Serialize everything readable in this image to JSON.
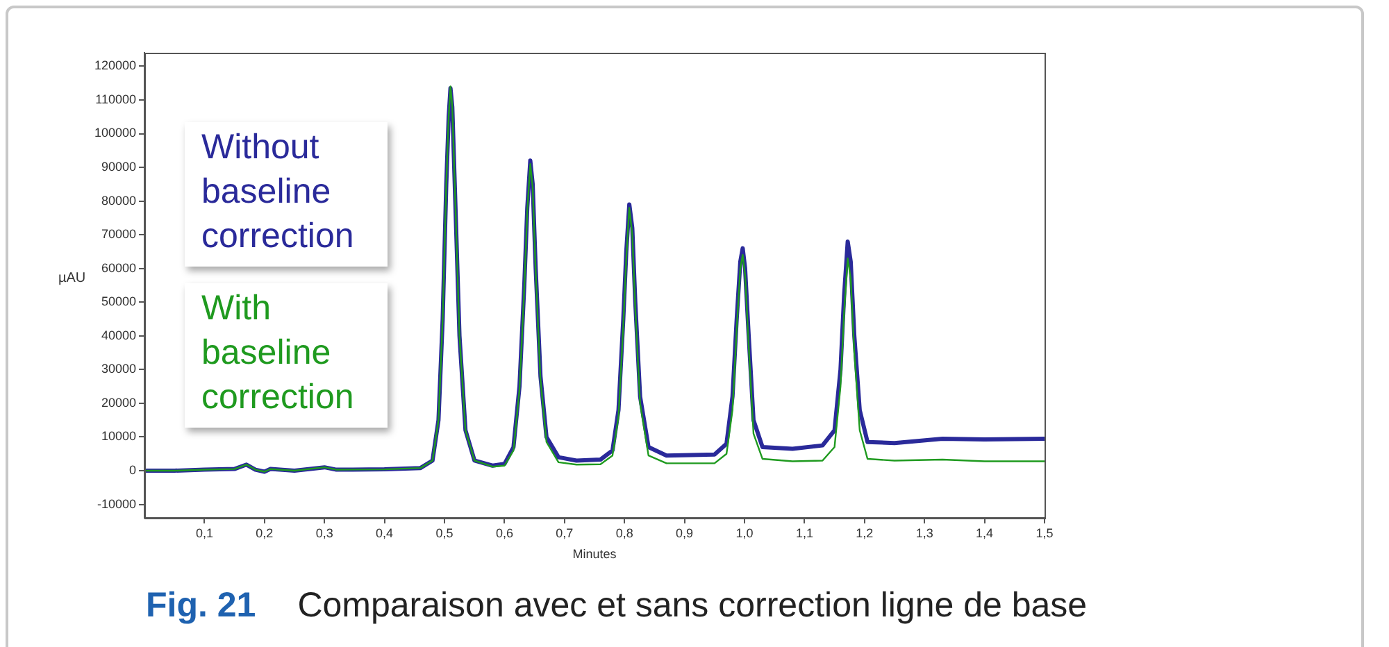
{
  "chart_data": {
    "type": "line",
    "xlabel": "Minutes",
    "ylabel": "µAU",
    "legend": "top left",
    "grid": false,
    "marker": "none",
    "line_style": "solid",
    "annotations": [
      "Fig. 21",
      "Comparaison avec et sans correction ligne de base"
    ],
    "xlim": [
      0,
      1.5
    ],
    "ylim": [
      -14000,
      124000
    ],
    "xticks": [
      {
        "value": 0.1,
        "label": "0,1"
      },
      {
        "value": 0.2,
        "label": "0,2"
      },
      {
        "value": 0.3,
        "label": "0,3"
      },
      {
        "value": 0.4,
        "label": "0,4"
      },
      {
        "value": 0.5,
        "label": "0,5"
      },
      {
        "value": 0.6,
        "label": "0,6"
      },
      {
        "value": 0.7,
        "label": "0,7"
      },
      {
        "value": 0.8,
        "label": "0,8"
      },
      {
        "value": 0.9,
        "label": "0,9"
      },
      {
        "value": 1.0,
        "label": "1,0"
      },
      {
        "value": 1.1,
        "label": "1,1"
      },
      {
        "value": 1.2,
        "label": "1,2"
      },
      {
        "value": 1.3,
        "label": "1,3"
      },
      {
        "value": 1.4,
        "label": "1,4"
      },
      {
        "value": 1.5,
        "label": "1,5"
      }
    ],
    "yticks": [
      -10000,
      0,
      10000,
      20000,
      30000,
      40000,
      50000,
      60000,
      70000,
      80000,
      90000,
      100000,
      110000,
      120000
    ],
    "x": [
      0,
      0.05,
      0.1,
      0.15,
      0.17,
      0.185,
      0.2,
      0.21,
      0.25,
      0.3,
      0.32,
      0.4,
      0.46,
      0.48,
      0.49,
      0.497,
      0.503,
      0.507,
      0.51,
      0.513,
      0.518,
      0.525,
      0.535,
      0.55,
      0.58,
      0.6,
      0.615,
      0.625,
      0.633,
      0.638,
      0.643,
      0.647,
      0.652,
      0.66,
      0.67,
      0.69,
      0.72,
      0.76,
      0.78,
      0.79,
      0.798,
      0.803,
      0.808,
      0.813,
      0.818,
      0.826,
      0.84,
      0.87,
      0.95,
      0.97,
      0.98,
      0.987,
      0.993,
      0.997,
      1.001,
      1.007,
      1.015,
      1.03,
      1.08,
      1.13,
      1.15,
      1.16,
      1.166,
      1.172,
      1.177,
      1.183,
      1.192,
      1.205,
      1.25,
      1.33,
      1.4,
      1.5
    ],
    "series": [
      {
        "name": "Without baseline correction",
        "color": "#2a2a9a",
        "values": [
          0,
          0,
          300,
          500,
          1800,
          300,
          -300,
          500,
          0,
          1000,
          300,
          400,
          800,
          3000,
          15000,
          45000,
          85000,
          105000,
          113500,
          108000,
          80000,
          40000,
          12000,
          3000,
          1500,
          2000,
          7000,
          25000,
          55000,
          78000,
          92000,
          85000,
          60000,
          28000,
          10000,
          4000,
          3000,
          3300,
          6000,
          18000,
          45000,
          65000,
          79000,
          72000,
          50000,
          22000,
          7000,
          4500,
          4800,
          8000,
          22000,
          45000,
          62000,
          66000,
          60000,
          40000,
          15000,
          7000,
          6500,
          7500,
          12000,
          30000,
          52000,
          68000,
          62000,
          40000,
          18000,
          8500,
          8200,
          9500,
          9300,
          9500
        ]
      },
      {
        "name": "With baseline correction",
        "color": "#1f9a1f",
        "values": [
          0,
          0,
          300,
          500,
          1800,
          300,
          -300,
          500,
          0,
          1000,
          300,
          400,
          800,
          3000,
          15000,
          45000,
          85000,
          105000,
          114000,
          108000,
          80000,
          40000,
          12000,
          3000,
          1200,
          1500,
          6000,
          24000,
          54000,
          77000,
          91000,
          84000,
          59000,
          27000,
          8500,
          2500,
          1800,
          1900,
          4500,
          16000,
          43000,
          63000,
          78000,
          70000,
          48000,
          20000,
          4500,
          2200,
          2200,
          5000,
          18000,
          42000,
          60000,
          64000,
          58000,
          37000,
          11000,
          3500,
          2800,
          3000,
          7000,
          25000,
          47000,
          63000,
          57000,
          35000,
          12000,
          3500,
          3000,
          3300,
          2800,
          2800
        ]
      }
    ]
  }
}
